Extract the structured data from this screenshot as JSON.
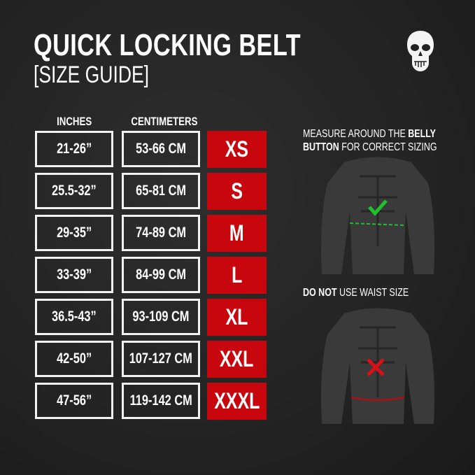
{
  "header": {
    "title": "QUICK LOCKING BELT",
    "subtitle": "[SIZE GUIDE]",
    "logo": "skull-logo"
  },
  "table": {
    "headers": {
      "inches": "INCHES",
      "centimeters": "CENTIMETERS"
    },
    "rows": [
      {
        "inches": "21-26”",
        "cm": "53-66 CM",
        "size": "XS"
      },
      {
        "inches": "25.5-32”",
        "cm": "65-81 CM",
        "size": "S"
      },
      {
        "inches": "29-35”",
        "cm": "74-89 CM",
        "size": "M"
      },
      {
        "inches": "33-39”",
        "cm": "84-99 CM",
        "size": "L"
      },
      {
        "inches": "36.5-43”",
        "cm": "93-109 CM",
        "size": "XL"
      },
      {
        "inches": "42-50”",
        "cm": "107-127 CM",
        "size": "XXL"
      },
      {
        "inches": "47-56”",
        "cm": "119-142 CM",
        "size": "XXXL"
      }
    ]
  },
  "guide": {
    "measure": {
      "t1": "MEASURE AROUND THE ",
      "b1": "BELLY",
      "b2": "BUTTON",
      "t2": " FOR CORRECT SIZING",
      "icon": "check-icon"
    },
    "avoid": {
      "b1": "DO NOT",
      "t1": " USE WAIST SIZE",
      "icon": "x-icon"
    }
  },
  "colors": {
    "accent": "#c8060d",
    "check": "#1fbf2e",
    "background": "#232323"
  }
}
